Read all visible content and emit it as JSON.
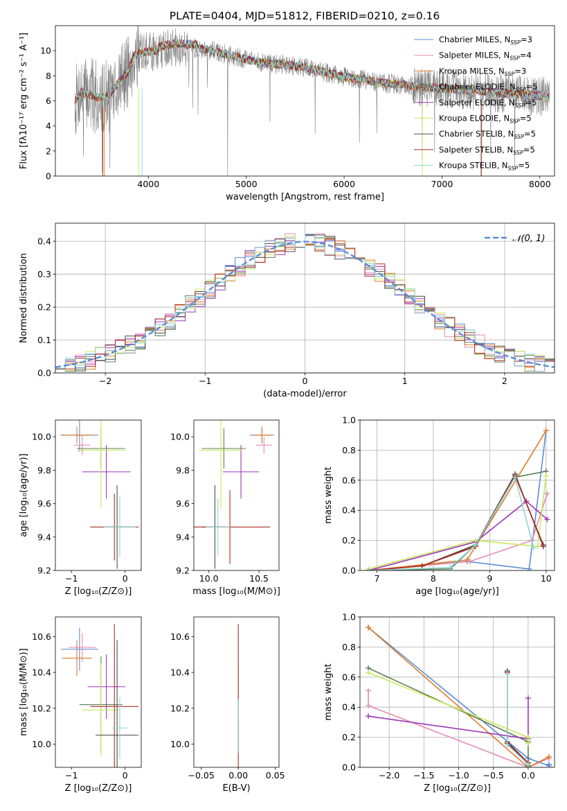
{
  "title": "PLATE=0404, MJD=51812, FIBERID=0210, z=0.16",
  "colors": {
    "Chabrier MILES": "#5b8bd6",
    "Salpeter MILES": "#e58ab0",
    "Kroupa MILES": "#e07b2a",
    "Chabrier ELODIE": "#5d7d54",
    "Salpeter ELODIE": "#9b36b7",
    "Kroupa ELODIE": "#c9e85c",
    "Chabrier STELIB": "#4a4a4a",
    "Salpeter STELIB": "#b0281e",
    "Kroupa STELIB": "#8fd6d6",
    "data": "#808080",
    "normal": "#5b8bd6"
  },
  "chart_data": [
    {
      "id": "spectrum",
      "type": "line",
      "xlabel": "wavelength [Angstrom, rest frame]",
      "ylabel": "Flux [fλ10⁻¹⁷ erg cm⁻² s⁻¹ A⁻¹]",
      "xlim": [
        3050,
        8150
      ],
      "ylim": [
        0,
        12
      ],
      "xticks": [
        "4000",
        "5000",
        "6000",
        "7000",
        "8000"
      ],
      "yticks": [
        "0",
        "2",
        "4",
        "6",
        "8",
        "10"
      ],
      "legend": [
        {
          "label": "Chabrier MILES, Nₛₛₚ=3",
          "base": "Chabrier MILES, N",
          "sub": "SSP",
          "suffix": "=3"
        },
        {
          "label": "Salpeter MILES, Nₛₛₚ=4",
          "base": "Salpeter MILES, N",
          "sub": "SSP",
          "suffix": "=4"
        },
        {
          "label": "Kroupa MILES, Nₛₛₚ=3",
          "base": "Kroupa MILES, N",
          "sub": "SSP",
          "suffix": "=3"
        },
        {
          "label": "Chabrier ELODIE, Nₛₛₚ=5",
          "base": "Chabrier ELODIE, N",
          "sub": "SSP",
          "suffix": "=5"
        },
        {
          "label": "Salpeter ELODIE, Nₛₛₚ=5",
          "base": "Salpeter ELODIE, N",
          "sub": "SSP",
          "suffix": "=5"
        },
        {
          "label": "Kroupa ELODIE, Nₛₛₚ=5",
          "base": "Kroupa ELODIE, N",
          "sub": "SSP",
          "suffix": "=5"
        },
        {
          "label": "Chabrier STELIB, Nₛₛₚ=5",
          "base": "Chabrier STELIB, N",
          "sub": "SSP",
          "suffix": "=5"
        },
        {
          "label": "Salpeter STELIB, Nₛₛₚ=5",
          "base": "Salpeter STELIB, N",
          "sub": "SSP",
          "suffix": "=5"
        },
        {
          "label": "Kroupa STELIB, Nₛₛₚ=5",
          "base": "Kroupa STELIB, N",
          "sub": "SSP",
          "suffix": "=5"
        }
      ],
      "continuum": [
        [
          3250,
          5.9
        ],
        [
          3300,
          6.7
        ],
        [
          3400,
          6.5
        ],
        [
          3500,
          6.2
        ],
        [
          3600,
          6.5
        ],
        [
          3700,
          7.5
        ],
        [
          3800,
          8.4
        ],
        [
          3850,
          9.6
        ],
        [
          3900,
          9.8
        ],
        [
          4000,
          9.9
        ],
        [
          4100,
          10.0
        ],
        [
          4200,
          10.2
        ],
        [
          4300,
          10.3
        ],
        [
          4400,
          10.2
        ],
        [
          4500,
          10.2
        ],
        [
          4600,
          10.1
        ],
        [
          4800,
          9.7
        ],
        [
          5000,
          9.3
        ],
        [
          5200,
          9.0
        ],
        [
          5400,
          8.9
        ],
        [
          5600,
          8.7
        ],
        [
          5800,
          8.3
        ],
        [
          6000,
          7.9
        ],
        [
          6200,
          7.7
        ],
        [
          6400,
          7.4
        ],
        [
          6600,
          7.3
        ],
        [
          6800,
          7.1
        ],
        [
          7000,
          7.0
        ],
        [
          7200,
          6.9
        ],
        [
          7400,
          6.8
        ],
        [
          7600,
          6.6
        ],
        [
          7800,
          6.5
        ],
        [
          8000,
          6.4
        ],
        [
          8100,
          6.3
        ]
      ]
    },
    {
      "id": "residuals",
      "type": "histogram",
      "xlabel": "(data-model)/error",
      "ylabel": "Normed distribution",
      "xlim": [
        -2.5,
        2.5
      ],
      "ylim": [
        0,
        0.455
      ],
      "xticks": [
        "−2",
        "−1",
        "0",
        "1",
        "2"
      ],
      "yticks": [
        "0.0",
        "0.1",
        "0.2",
        "0.3",
        "0.4"
      ],
      "legend": "𝒩(0, 1)",
      "grid": true
    },
    {
      "id": "age-vs-Z",
      "type": "scatter",
      "xlabel": "Z [log₁₀(Z/Z⊙)]",
      "ylabel": "age  [log₁₀(age/yr)]",
      "xlim": [
        -1.3,
        0.3
      ],
      "ylim": [
        9.2,
        10.1
      ],
      "xticks": [
        "−1",
        "0"
      ],
      "yticks": [
        "9.2",
        "9.4",
        "9.6",
        "9.8",
        "10.0"
      ],
      "points": [
        {
          "s": "Chabrier MILES",
          "x": -0.85,
          "y": 10.01,
          "xerr": 0.35,
          "yerr": 0.1
        },
        {
          "s": "Salpeter MILES",
          "x": -0.8,
          "y": 9.95,
          "xerr": 0.15,
          "yerr": 0.06
        },
        {
          "s": "Kroupa MILES",
          "x": -0.9,
          "y": 10.01,
          "xerr": 0.3,
          "yerr": 0.05
        },
        {
          "s": "Chabrier ELODIE",
          "x": -0.45,
          "y": 9.93,
          "xerr": 0.45,
          "yerr": 0.12
        },
        {
          "s": "Salpeter ELODIE",
          "x": -0.35,
          "y": 9.79,
          "xerr": 0.45,
          "yerr": 0.16
        },
        {
          "s": "Kroupa ELODIE",
          "x": -0.45,
          "y": 9.92,
          "xerr": 0.45,
          "yerr": 0.35
        },
        {
          "s": "Chabrier STELIB",
          "x": -0.15,
          "y": 9.46,
          "xerr": 0.25,
          "yerr": 0.25
        },
        {
          "s": "Salpeter STELIB",
          "x": -0.2,
          "y": 9.46,
          "xerr": 0.45,
          "yerr": 0.2
        },
        {
          "s": "Kroupa STELIB",
          "x": -0.1,
          "y": 9.46,
          "xerr": 0.3,
          "yerr": 0.18
        }
      ]
    },
    {
      "id": "age-vs-mass",
      "type": "scatter",
      "xlabel": "mass [log₁₀(M/M⊙)]",
      "ylabel": "",
      "xlim": [
        9.85,
        10.7
      ],
      "ylim": [
        9.2,
        10.1
      ],
      "xticks": [
        "10.0",
        "10.5"
      ],
      "yticks": [
        "9.2",
        "9.4",
        "9.6",
        "9.8",
        "10.0"
      ],
      "points": [
        {
          "s": "Chabrier MILES",
          "x": 10.53,
          "y": 10.01,
          "xerr": 0.12,
          "yerr": 0.05
        },
        {
          "s": "Salpeter MILES",
          "x": 10.55,
          "y": 9.95,
          "xerr": 0.08,
          "yerr": 0.05
        },
        {
          "s": "Kroupa MILES",
          "x": 10.53,
          "y": 10.01,
          "xerr": 0.1,
          "yerr": 0.05
        },
        {
          "s": "Chabrier ELODIE",
          "x": 10.15,
          "y": 9.93,
          "xerr": 0.22,
          "yerr": 0.12
        },
        {
          "s": "Salpeter ELODIE",
          "x": 10.32,
          "y": 9.79,
          "xerr": 0.18,
          "yerr": 0.16
        },
        {
          "s": "Kroupa ELODIE",
          "x": 10.12,
          "y": 9.92,
          "xerr": 0.22,
          "yerr": 0.35
        },
        {
          "s": "Chabrier STELIB",
          "x": 10.06,
          "y": 9.46,
          "xerr": 0.12,
          "yerr": 0.25
        },
        {
          "s": "Salpeter STELIB",
          "x": 10.21,
          "y": 9.46,
          "xerr": 0.4,
          "yerr": 0.22
        },
        {
          "s": "Kroupa STELIB",
          "x": 10.09,
          "y": 9.46,
          "xerr": 0.12,
          "yerr": 0.17
        }
      ]
    },
    {
      "id": "weight-vs-age",
      "type": "line",
      "xlabel": "age  [log₁₀(age/yr)]",
      "ylabel": "mass weight",
      "xlim": [
        6.7,
        10.15
      ],
      "ylim": [
        0,
        1
      ],
      "xticks": [
        "7",
        "8",
        "9",
        "10"
      ],
      "yticks": [
        "0.0",
        "0.2",
        "0.4",
        "0.6",
        "0.8",
        "1.0"
      ],
      "grid": true,
      "series": [
        {
          "s": "Chabrier MILES",
          "x": [
            6.85,
            8.6,
            9.7,
            10.0
          ],
          "y": [
            0.0,
            0.06,
            0.01,
            0.93
          ]
        },
        {
          "s": "Salpeter MILES",
          "x": [
            6.85,
            8.65,
            9.75,
            10.02
          ],
          "y": [
            0.0,
            0.06,
            0.2,
            0.51
          ]
        },
        {
          "s": "Kroupa MILES",
          "x": [
            6.85,
            8.6,
            10.0
          ],
          "y": [
            0.0,
            0.07,
            0.93
          ]
        },
        {
          "s": "Chabrier ELODIE",
          "x": [
            6.85,
            8.3,
            8.75,
            9.45,
            10.0
          ],
          "y": [
            0.0,
            0.01,
            0.17,
            0.62,
            0.66
          ]
        },
        {
          "s": "Salpeter ELODIE",
          "x": [
            6.85,
            8.75,
            9.65,
            10.02
          ],
          "y": [
            0.0,
            0.19,
            0.46,
            0.34
          ]
        },
        {
          "s": "Kroupa ELODIE",
          "x": [
            6.85,
            8.75,
            9.85,
            10.0
          ],
          "y": [
            0.01,
            0.2,
            0.16,
            0.63
          ]
        },
        {
          "s": "Chabrier STELIB",
          "x": [
            6.85,
            7.8,
            8.75,
            9.45,
            9.95
          ],
          "y": [
            0.0,
            0.03,
            0.17,
            0.64,
            0.16
          ]
        },
        {
          "s": "Salpeter STELIB",
          "x": [
            6.85,
            7.8,
            8.75,
            9.45,
            9.95
          ],
          "y": [
            0.0,
            0.03,
            0.16,
            0.63,
            0.17
          ]
        },
        {
          "s": "Kroupa STELIB",
          "x": [
            6.85,
            8.3,
            8.75,
            9.45,
            9.78
          ],
          "y": [
            0.0,
            0.02,
            0.17,
            0.62,
            0.15
          ]
        }
      ]
    },
    {
      "id": "mass-vs-Z",
      "type": "scatter",
      "xlabel": "Z [log₁₀(Z/Z⊙)]",
      "ylabel": "mass [log₁₀(M/M⊙)]",
      "xlim": [
        -1.3,
        0.3
      ],
      "ylim": [
        9.87,
        10.71
      ],
      "xticks": [
        "−1",
        "0"
      ],
      "yticks": [
        "10.0",
        "10.2",
        "10.4",
        "10.6"
      ],
      "points": [
        {
          "s": "Chabrier MILES",
          "x": -0.85,
          "y": 10.53,
          "xerr": 0.35,
          "yerr": 0.12
        },
        {
          "s": "Salpeter MILES",
          "x": -0.8,
          "y": 10.54,
          "xerr": 0.25,
          "yerr": 0.08
        },
        {
          "s": "Kroupa MILES",
          "x": -0.9,
          "y": 10.48,
          "xerr": 0.28,
          "yerr": 0.1
        },
        {
          "s": "Chabrier ELODIE",
          "x": -0.45,
          "y": 10.22,
          "xerr": 0.4,
          "yerr": 0.27
        },
        {
          "s": "Salpeter ELODIE",
          "x": -0.35,
          "y": 10.32,
          "xerr": 0.35,
          "yerr": 0.18
        },
        {
          "s": "Kroupa ELODIE",
          "x": -0.45,
          "y": 10.19,
          "xerr": 0.35,
          "yerr": 0.26
        },
        {
          "s": "Chabrier STELIB",
          "x": -0.15,
          "y": 10.05,
          "xerr": 0.4,
          "yerr": 0.53
        },
        {
          "s": "Salpeter STELIB",
          "x": -0.2,
          "y": 10.21,
          "xerr": 0.45,
          "yerr": 0.46
        },
        {
          "s": "Kroupa STELIB",
          "x": -0.1,
          "y": 10.09,
          "xerr": 0.15,
          "yerr": 0.17
        }
      ]
    },
    {
      "id": "mass-vs-ebv",
      "type": "scatter",
      "xlabel": "E(B-V)",
      "ylabel": "",
      "xlim": [
        -0.06,
        0.055
      ],
      "ylim": [
        9.87,
        10.71
      ],
      "xticks": [
        "−0.05",
        "0.00",
        "0.05"
      ],
      "yticks": [
        "10.0",
        "10.2",
        "10.4",
        "10.6"
      ],
      "points": [
        {
          "s": "Kroupa ELODIE",
          "x": 0.0,
          "y": 10.2,
          "xerr": 0,
          "yerr": 0.25
        },
        {
          "s": "Chabrier STELIB",
          "x": 0.0,
          "y": 10.05,
          "xerr": 0,
          "yerr": 0.1
        },
        {
          "s": "Salpeter STELIB",
          "x": 0.0,
          "y": 10.21,
          "xerr": 0,
          "yerr": 0.46
        },
        {
          "s": "Kroupa STELIB",
          "x": 0.0,
          "y": 10.1,
          "xerr": 0,
          "yerr": 0.15
        }
      ]
    },
    {
      "id": "weight-vs-Z",
      "type": "line",
      "xlabel": "Z [log₁₀(Z/Z⊙)]",
      "ylabel": "mass weight",
      "xlim": [
        -2.42,
        0.38
      ],
      "ylim": [
        0,
        1
      ],
      "xticks": [
        "−2.0",
        "−1.5",
        "−1.0",
        "−0.5",
        "0.0"
      ],
      "yticks": [
        "0.0",
        "0.2",
        "0.4",
        "0.6",
        "0.8",
        "1.0"
      ],
      "grid": true,
      "series": [
        {
          "s": "Chabrier MILES",
          "x": [
            -2.3,
            0.0,
            0.3,
            0.3
          ],
          "y": [
            0.93,
            0.06,
            0.01,
            0.02
          ]
        },
        {
          "s": "Salpeter MILES",
          "x": [
            -2.3,
            -2.3,
            0.0,
            0.3
          ],
          "y": [
            0.51,
            0.41,
            0.0,
            0.06
          ]
        },
        {
          "s": "Kroupa MILES",
          "x": [
            -2.3,
            0.0,
            0.3
          ],
          "y": [
            0.93,
            0.0,
            0.07
          ]
        },
        {
          "s": "Chabrier ELODIE",
          "x": [
            -2.3,
            0.0,
            0.0
          ],
          "y": [
            0.66,
            0.17,
            0.01
          ]
        },
        {
          "s": "Salpeter ELODIE",
          "x": [
            -2.3,
            0.0,
            0.0
          ],
          "y": [
            0.34,
            0.19,
            0.46
          ]
        },
        {
          "s": "Kroupa ELODIE",
          "x": [
            -2.3,
            0.0,
            0.0
          ],
          "y": [
            0.63,
            0.2,
            0.16
          ]
        },
        {
          "s": "Chabrier STELIB",
          "x": [
            -0.3,
            -0.3,
            0.0,
            0.0
          ],
          "y": [
            0.64,
            0.17,
            0.03,
            0.0
          ]
        },
        {
          "s": "Salpeter STELIB",
          "x": [
            -0.3,
            -0.3,
            0.0,
            0.0
          ],
          "y": [
            0.63,
            0.16,
            0.03,
            0.0
          ]
        },
        {
          "s": "Kroupa STELIB",
          "x": [
            -0.3,
            -0.3,
            0.0,
            0.0
          ],
          "y": [
            0.62,
            0.15,
            0.02,
            0.0
          ]
        }
      ]
    }
  ]
}
